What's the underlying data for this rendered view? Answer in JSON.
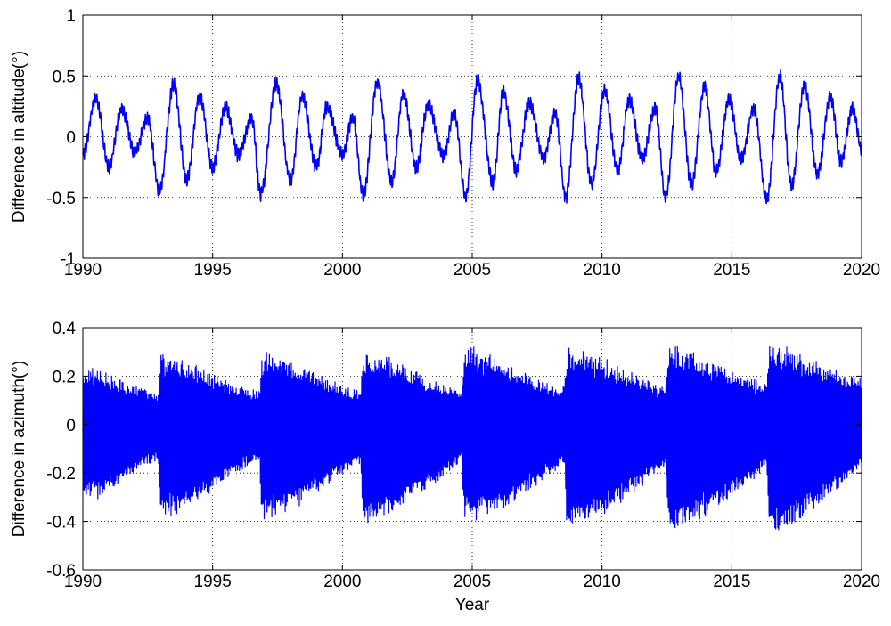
{
  "figure": {
    "background": "#ffffff",
    "line_color": "#0000ff",
    "grid_color": "#000000"
  },
  "chart_data": [
    {
      "type": "line",
      "title": "",
      "xlabel": "",
      "ylabel": "Difference in altitude(°)",
      "xlim": [
        1990,
        2020
      ],
      "ylim": [
        -1,
        1
      ],
      "xticks": [
        1990,
        1995,
        2000,
        2005,
        2010,
        2015,
        2020
      ],
      "xtick_labels": [
        "1990",
        "1995",
        "2000",
        "2005",
        "2010",
        "2015",
        "2020"
      ],
      "yticks": [
        -1,
        -0.5,
        0,
        0.5,
        1
      ],
      "ytick_labels": [
        "-1",
        "-0.5",
        "0",
        "0.5",
        "1"
      ],
      "grid": true,
      "grid_style": "dotted",
      "legend": "none",
      "series": [
        {
          "x": [
            1990.0,
            1990.5,
            1991.0,
            1991.5,
            1992.0,
            1992.5,
            1992.95,
            1993.5,
            1994.0,
            1994.5,
            1995.0,
            1995.5,
            1996.0,
            1996.5,
            1996.85,
            1997.45,
            1998.0,
            1998.45,
            1999.0,
            1999.4,
            2000.0,
            2000.4,
            2000.8,
            2001.35,
            2001.9,
            2002.35,
            2002.85,
            2003.3,
            2003.9,
            2004.3,
            2004.75,
            2005.2,
            2005.8,
            2006.2,
            2006.7,
            2007.2,
            2007.75,
            2008.2,
            2008.6,
            2009.1,
            2009.6,
            2010.1,
            2010.6,
            2011.05,
            2011.55,
            2012.05,
            2012.45,
            2012.95,
            2013.45,
            2013.95,
            2014.4,
            2014.9,
            2015.35,
            2015.85,
            2016.35,
            2016.85,
            2017.3,
            2017.8,
            2018.3,
            2018.8,
            2019.2,
            2019.65,
            2020.0
          ],
          "y": [
            -0.15,
            0.32,
            -0.25,
            0.23,
            -0.13,
            0.15,
            -0.45,
            0.43,
            -0.35,
            0.33,
            -0.25,
            0.24,
            -0.15,
            0.15,
            -0.47,
            0.44,
            -0.36,
            0.33,
            -0.25,
            0.25,
            -0.15,
            0.16,
            -0.48,
            0.45,
            -0.37,
            0.36,
            -0.26,
            0.26,
            -0.16,
            0.19,
            -0.49,
            0.46,
            -0.38,
            0.37,
            -0.27,
            0.28,
            -0.17,
            0.19,
            -0.5,
            0.48,
            -0.39,
            0.39,
            -0.28,
            0.3,
            -0.18,
            0.23,
            -0.5,
            0.49,
            -0.4,
            0.41,
            -0.29,
            0.31,
            -0.19,
            0.23,
            -0.52,
            0.5,
            -0.41,
            0.42,
            -0.3,
            0.33,
            -0.2,
            0.23,
            -0.1
          ]
        }
      ]
    },
    {
      "type": "line",
      "title": "",
      "xlabel": "Year",
      "ylabel": "Difference in azimuth(°)",
      "xlim": [
        1990,
        2020
      ],
      "ylim": [
        -0.6,
        0.4
      ],
      "xticks": [
        1990,
        1995,
        2000,
        2005,
        2010,
        2015,
        2020
      ],
      "xtick_labels": [
        "1990",
        "1995",
        "2000",
        "2005",
        "2010",
        "2015",
        "2020"
      ],
      "yticks": [
        -0.6,
        -0.4,
        -0.2,
        0,
        0.2,
        0.4
      ],
      "ytick_labels": [
        "-0.6",
        "-0.4",
        "-0.2",
        "0",
        "0.2",
        "0.4"
      ],
      "grid": true,
      "grid_style": "dotted",
      "legend": "none",
      "series": [
        {
          "description_envelope_x": [
            1990.0,
            1990.6,
            1991.2,
            1991.8,
            1992.4,
            1992.9,
            1993.0,
            1993.5,
            1994.0,
            1994.6,
            1995.2,
            1995.8,
            1996.4,
            1996.8,
            1996.9,
            1997.4,
            1998.0,
            1998.6,
            1999.2,
            1999.8,
            2000.4,
            2000.7,
            2000.8,
            2001.3,
            2001.9,
            2002.5,
            2003.1,
            2003.7,
            2004.3,
            2004.6,
            2004.7,
            2005.2,
            2005.8,
            2006.4,
            2007.0,
            2007.6,
            2008.2,
            2008.55,
            2008.65,
            2009.2,
            2009.8,
            2010.4,
            2011.0,
            2011.6,
            2012.2,
            2012.45,
            2012.55,
            2013.1,
            2013.7,
            2014.3,
            2014.9,
            2015.5,
            2016.1,
            2016.35,
            2016.45,
            2017.0,
            2017.6,
            2018.2,
            2018.8,
            2019.4,
            2020.0
          ],
          "upper": [
            0.23,
            0.25,
            0.2,
            0.17,
            0.15,
            0.13,
            0.3,
            0.29,
            0.27,
            0.24,
            0.2,
            0.17,
            0.15,
            0.14,
            0.3,
            0.3,
            0.27,
            0.24,
            0.21,
            0.18,
            0.15,
            0.14,
            0.31,
            0.3,
            0.28,
            0.25,
            0.21,
            0.18,
            0.16,
            0.15,
            0.33,
            0.32,
            0.29,
            0.26,
            0.22,
            0.19,
            0.16,
            0.16,
            0.32,
            0.32,
            0.29,
            0.26,
            0.23,
            0.2,
            0.17,
            0.16,
            0.33,
            0.33,
            0.3,
            0.27,
            0.24,
            0.21,
            0.18,
            0.17,
            0.34,
            0.33,
            0.3,
            0.27,
            0.24,
            0.21,
            0.2
          ],
          "lower": [
            -0.3,
            -0.31,
            -0.27,
            -0.22,
            -0.17,
            -0.15,
            -0.4,
            -0.38,
            -0.36,
            -0.31,
            -0.26,
            -0.21,
            -0.17,
            -0.15,
            -0.4,
            -0.39,
            -0.36,
            -0.32,
            -0.27,
            -0.22,
            -0.18,
            -0.16,
            -0.42,
            -0.4,
            -0.37,
            -0.33,
            -0.28,
            -0.23,
            -0.18,
            -0.16,
            -0.42,
            -0.4,
            -0.38,
            -0.34,
            -0.29,
            -0.24,
            -0.19,
            -0.17,
            -0.44,
            -0.42,
            -0.39,
            -0.35,
            -0.3,
            -0.25,
            -0.2,
            -0.18,
            -0.45,
            -0.43,
            -0.4,
            -0.36,
            -0.31,
            -0.26,
            -0.2,
            -0.18,
            -0.46,
            -0.44,
            -0.4,
            -0.35,
            -0.3,
            -0.25,
            -0.18
          ]
        }
      ]
    }
  ]
}
